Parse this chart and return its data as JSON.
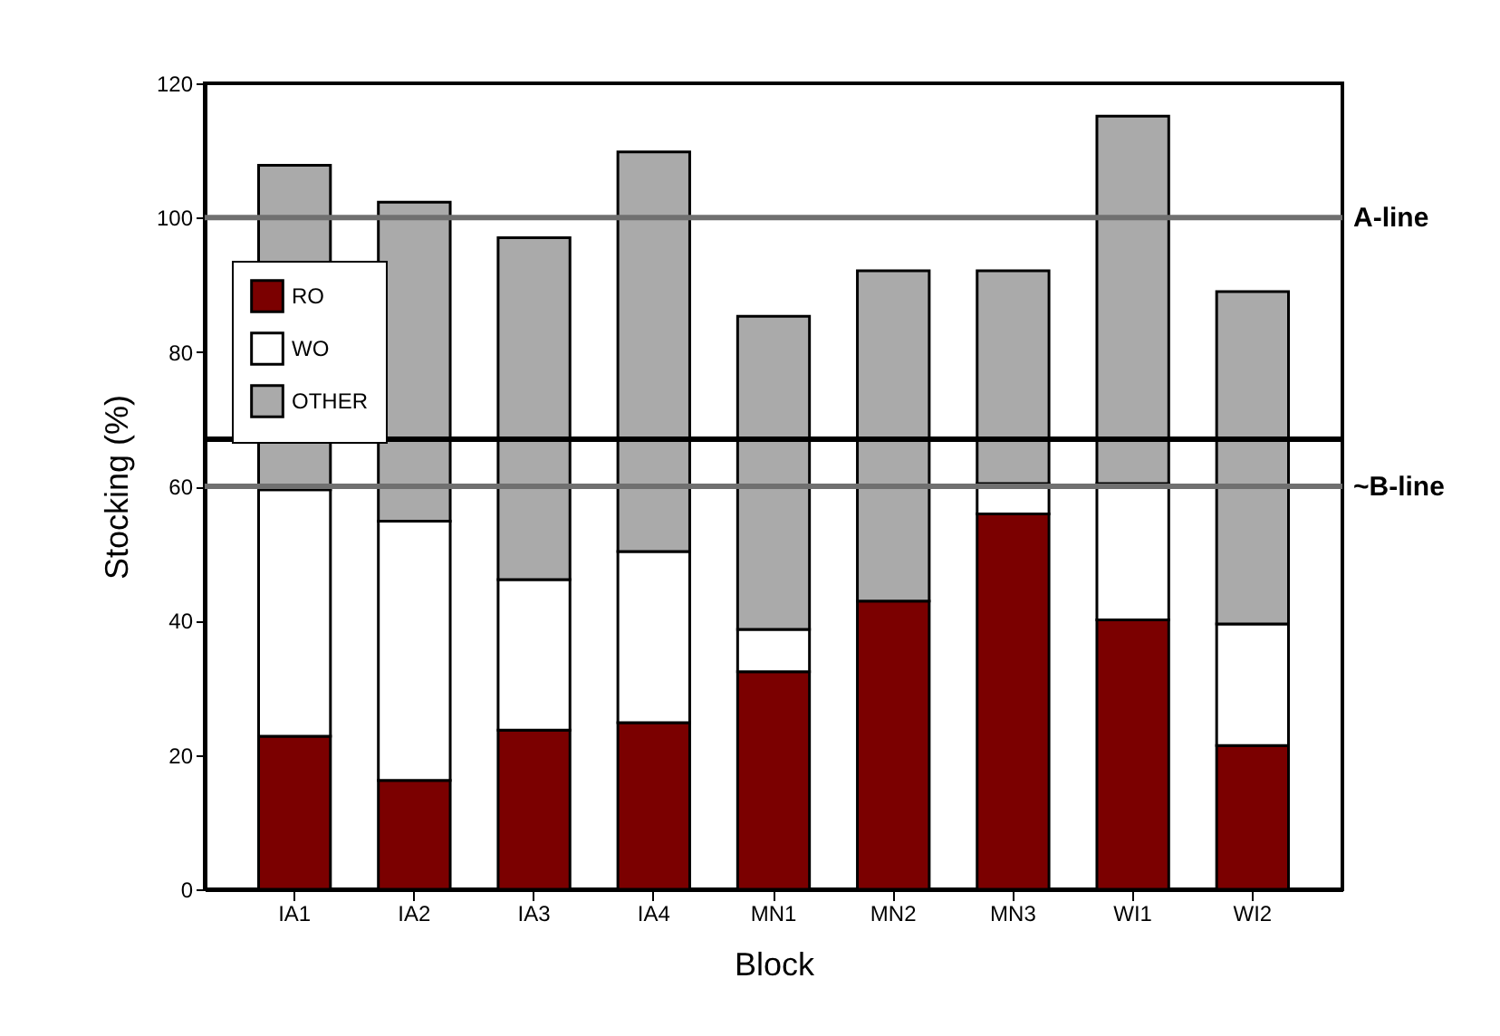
{
  "chart_data": {
    "type": "bar",
    "stacked": true,
    "xlabel": "Block",
    "ylabel": "Stocking (%)",
    "categories": [
      "IA1",
      "IA2",
      "IA3",
      "IA4",
      "MN1",
      "MN2",
      "MN3",
      "WI1",
      "WI2"
    ],
    "series": [
      {
        "name": "RO",
        "color": "#7b0000",
        "values": [
          22.8,
          16.2,
          23.7,
          24.8,
          32.4,
          42.9,
          55.9,
          40.1,
          21.4
        ]
      },
      {
        "name": "WO",
        "color": "#ffffff",
        "values": [
          36.7,
          38.6,
          22.4,
          25.5,
          6.3,
          null,
          4.5,
          20.3,
          18.1
        ]
      },
      {
        "name": "OTHER",
        "color": "#aaaaaa",
        "values": [
          48.3,
          47.5,
          50.9,
          59.5,
          46.6,
          49.2,
          31.7,
          54.7,
          49.5
        ]
      }
    ],
    "ylim": [
      0,
      120
    ],
    "yticks": [
      0,
      20,
      40,
      60,
      80,
      100,
      120
    ],
    "grid": false,
    "legend": "top left",
    "ref_lines": [
      {
        "axis": "y",
        "value": 100,
        "label": "A-line",
        "color": "#707070"
      },
      {
        "axis": "y",
        "value": 60,
        "label": "~B-line",
        "color": "#707070"
      },
      {
        "axis": "y",
        "value": 67,
        "label": null,
        "color": "#000000"
      }
    ]
  }
}
